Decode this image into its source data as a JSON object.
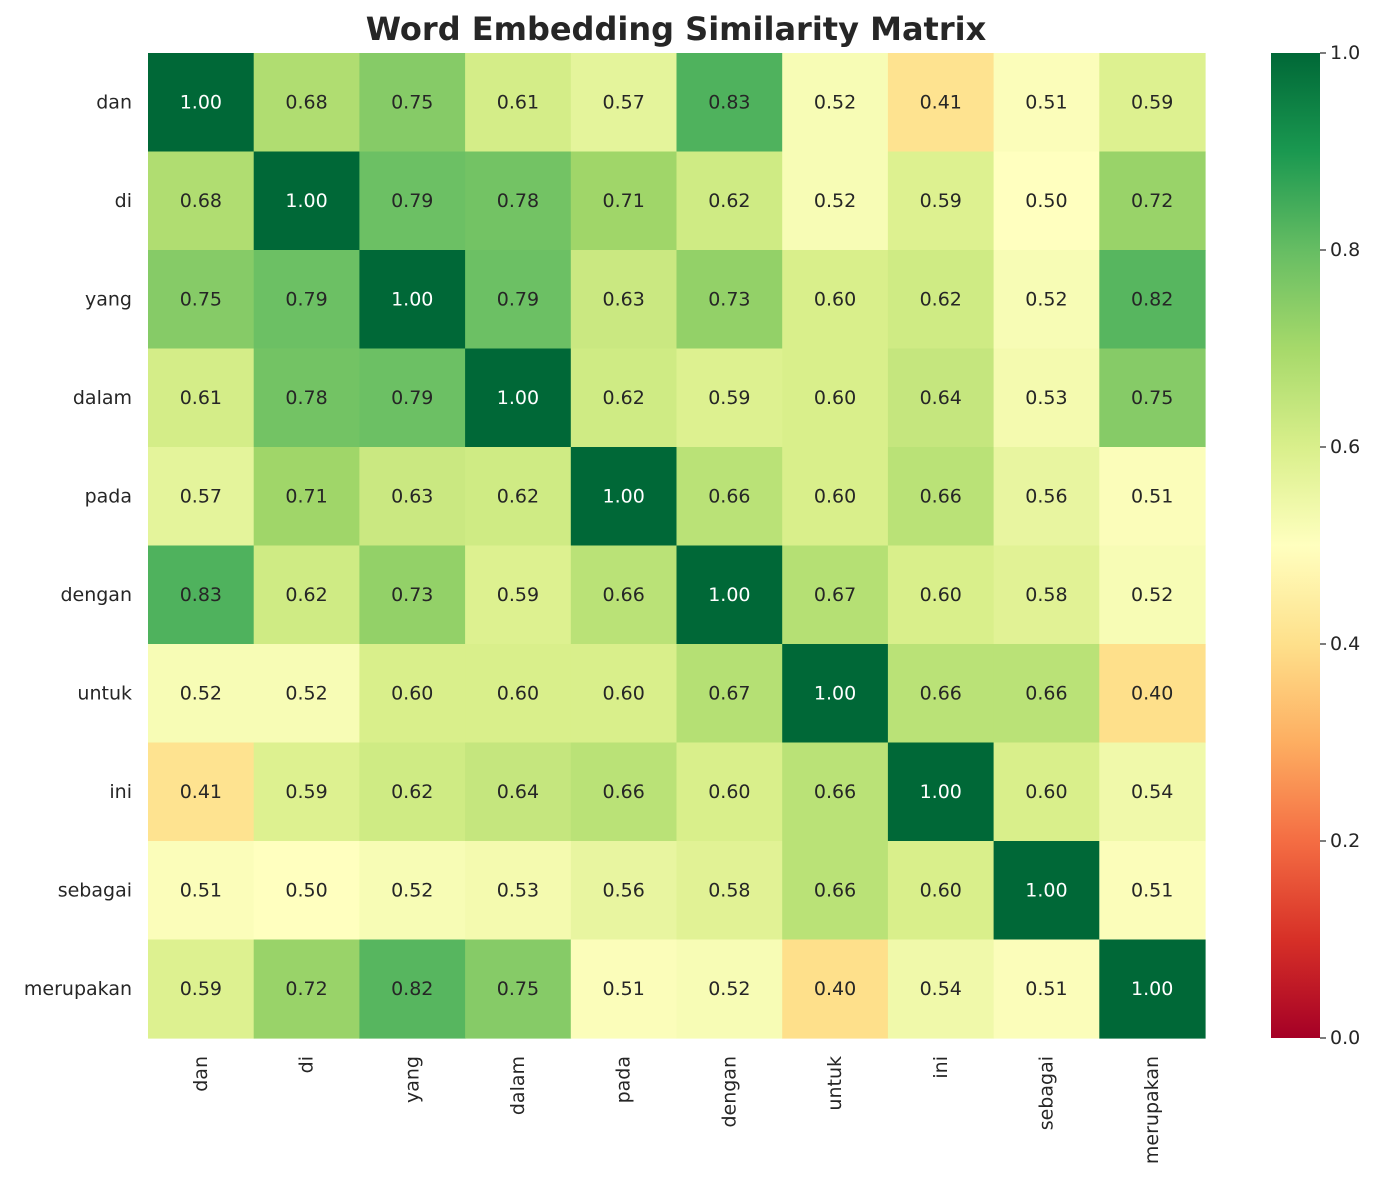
{
  "chart_data": {
    "type": "heatmap",
    "title": "Word Embedding Similarity Matrix",
    "xlabel": "",
    "ylabel": "",
    "rows": [
      "dan",
      "di",
      "yang",
      "dalam",
      "pada",
      "dengan",
      "untuk",
      "ini",
      "sebagai",
      "merupakan"
    ],
    "columns": [
      "dan",
      "di",
      "yang",
      "dalam",
      "pada",
      "dengan",
      "untuk",
      "ini",
      "sebagai",
      "merupakan"
    ],
    "values": [
      [
        1.0,
        0.68,
        0.75,
        0.61,
        0.57,
        0.83,
        0.52,
        0.41,
        0.51,
        0.59
      ],
      [
        0.68,
        1.0,
        0.79,
        0.78,
        0.71,
        0.62,
        0.52,
        0.59,
        0.5,
        0.72
      ],
      [
        0.75,
        0.79,
        1.0,
        0.79,
        0.63,
        0.73,
        0.6,
        0.62,
        0.52,
        0.82
      ],
      [
        0.61,
        0.78,
        0.79,
        1.0,
        0.62,
        0.59,
        0.6,
        0.64,
        0.53,
        0.75
      ],
      [
        0.57,
        0.71,
        0.63,
        0.62,
        1.0,
        0.66,
        0.6,
        0.66,
        0.56,
        0.51
      ],
      [
        0.83,
        0.62,
        0.73,
        0.59,
        0.66,
        1.0,
        0.67,
        0.6,
        0.58,
        0.52
      ],
      [
        0.52,
        0.52,
        0.6,
        0.6,
        0.6,
        0.67,
        1.0,
        0.66,
        0.66,
        0.4
      ],
      [
        0.41,
        0.59,
        0.62,
        0.64,
        0.66,
        0.6,
        0.66,
        1.0,
        0.6,
        0.54
      ],
      [
        0.51,
        0.5,
        0.52,
        0.53,
        0.56,
        0.58,
        0.66,
        0.6,
        1.0,
        0.51
      ],
      [
        0.59,
        0.72,
        0.82,
        0.75,
        0.51,
        0.52,
        0.4,
        0.54,
        0.51,
        1.0
      ]
    ],
    "value_format": "2 decimals",
    "colormap": "RdYlGn",
    "vmin": 0.0,
    "vmax": 1.0,
    "colorbar_ticks": [
      "0.0",
      "0.2",
      "0.4",
      "0.6",
      "0.8",
      "1.0"
    ],
    "colorbar_position": "right",
    "grid": false
  }
}
